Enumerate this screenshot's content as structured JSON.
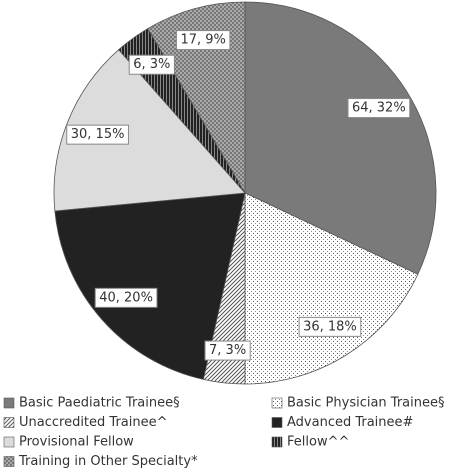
{
  "chart_data": {
    "type": "pie",
    "categories": [
      "Basic Paediatric Trainee§",
      "Basic Physician Trainee§",
      "Unaccredited Trainee^",
      "Advanced Trainee#",
      "Provisional Fellow",
      "Fellow^^",
      "Training in Other Specialty*"
    ],
    "values": [
      64,
      36,
      7,
      40,
      30,
      6,
      17
    ],
    "value_labels": [
      "64, 32%",
      "36, 18%",
      "7, 3%",
      "40, 20%",
      "30, 15%",
      "6, 3%",
      "17, 9%"
    ],
    "colors": [
      "#7a7a7a",
      "#ffffff",
      "#ffffff",
      "#222222",
      "#dcdcdc",
      "#2a2a2a",
      "#8c8c8c"
    ],
    "patterns": [
      null,
      "dots",
      "diagonal",
      null,
      null,
      "vertical",
      "checker"
    ]
  }
}
